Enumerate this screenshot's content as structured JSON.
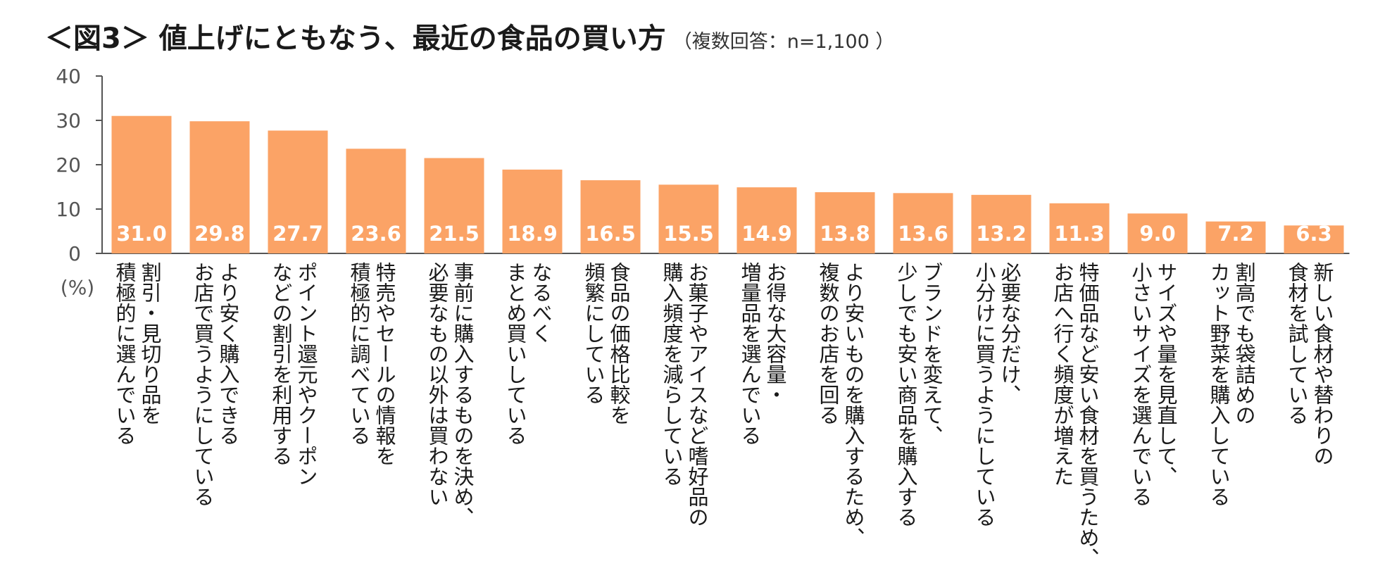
{
  "title": "＜図3＞ 値上げにともなう、最近の食品の買い方",
  "subtitle": "（複数回答：n=1,100 ）",
  "chart_data": {
    "type": "bar",
    "unit": "(%)",
    "ylim": [
      0,
      40
    ],
    "yticks": [
      0,
      10,
      20,
      30,
      40
    ],
    "bar_color": "#FBA366",
    "categories": [
      [
        "割引・見切り品を",
        "積極的に選んでいる"
      ],
      [
        "より安く購入できる",
        "お店で買うようにしている"
      ],
      [
        "ポイント還元やクーポン",
        "などの割引を利用する"
      ],
      [
        "特売やセールの情報を",
        "積極的に調べている"
      ],
      [
        "事前に購入するものを決め、",
        "必要なもの以外は買わない"
      ],
      [
        "なるべく",
        "まとめ買いしている"
      ],
      [
        "食品の価格比較を",
        "頻繁にしている"
      ],
      [
        "お菓子やアイスなど嗜好品の",
        "購入頻度を減らしている"
      ],
      [
        "お得な大容量・",
        "増量品を選んでいる"
      ],
      [
        "より安いものを購入するため、",
        "複数のお店を回る"
      ],
      [
        "ブランドを変えて、",
        "少しでも安い商品を購入する"
      ],
      [
        "必要な分だけ、",
        "小分けに買うようにしている"
      ],
      [
        "特価品など安い食材を買うため、",
        "お店へ行く頻度が増えた"
      ],
      [
        "サイズや量を見直して、",
        "小さいサイズを選んでいる"
      ],
      [
        "割高でも袋詰めの",
        "カット野菜を購入している"
      ],
      [
        "新しい食材や替わりの",
        "食材を試している"
      ]
    ],
    "values": [
      31.0,
      29.8,
      27.7,
      23.6,
      21.5,
      18.9,
      16.5,
      15.5,
      14.9,
      13.8,
      13.6,
      13.2,
      11.3,
      9.0,
      7.2,
      6.3
    ],
    "value_labels": [
      "31.0",
      "29.8",
      "27.7",
      "23.6",
      "21.5",
      "18.9",
      "16.5",
      "15.5",
      "14.9",
      "13.8",
      "13.6",
      "13.2",
      "11.3",
      "9.0",
      "7.2",
      "6.3"
    ]
  }
}
